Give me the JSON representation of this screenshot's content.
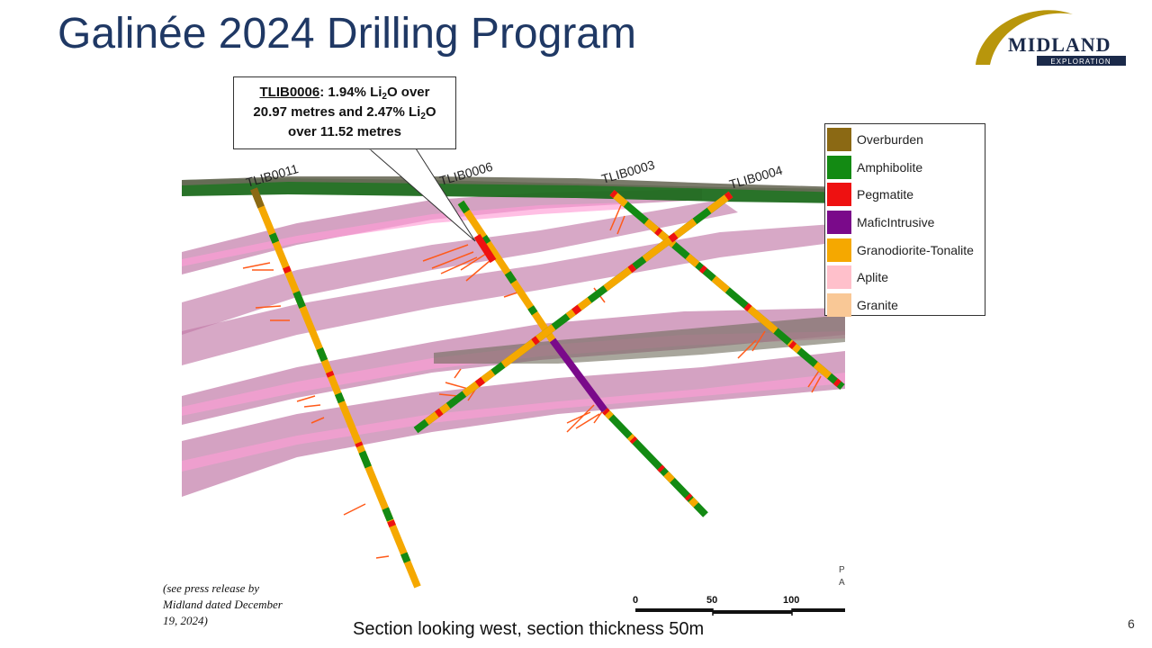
{
  "slide": {
    "title": "Galinée 2024 Drilling Program",
    "page_number": "6"
  },
  "logo": {
    "text": "MIDLAND",
    "subtitle": "EXPLORATION",
    "colors": {
      "gold": "#b8960c",
      "navy": "#1b2a4a"
    }
  },
  "callout": {
    "hole": "TLIB0006",
    "line1_after_hole": ": 1.94% Li",
    "line1_sub": "2",
    "line1_end": "O over",
    "line2_start": "20.97 metres and 2.47% Li",
    "line2_sub": "2",
    "line2_end": "O",
    "line3": "over 11.52 metres"
  },
  "drillholes": {
    "TLIB0011": "TLIB0011",
    "TLIB0006": "TLIB0006",
    "TLIB0003": "TLIB0003",
    "TLIB0004": "TLIB0004"
  },
  "legend": {
    "items": [
      {
        "label": "Overburden",
        "color": "#8b6914"
      },
      {
        "label": "Amphibolite",
        "color": "#138a13"
      },
      {
        "label": "Pegmatite",
        "color": "#ee1111"
      },
      {
        "label": "MaficIntrusive",
        "color": "#7a0a8a"
      },
      {
        "label": "Granodiorite-Tonalite",
        "color": "#f5a800"
      },
      {
        "label": "Aplite",
        "color": "#ffc0cb"
      },
      {
        "label": "Granite",
        "color": "#f9c896"
      }
    ]
  },
  "scale_bar": {
    "labels": [
      "0",
      "50",
      "100"
    ]
  },
  "edge_fragment": {
    "line1": "P",
    "line2": "A"
  },
  "note": "(see press release by Midland dated December 19, 2024)",
  "caption": "Section looking west, section thickness 50m"
}
